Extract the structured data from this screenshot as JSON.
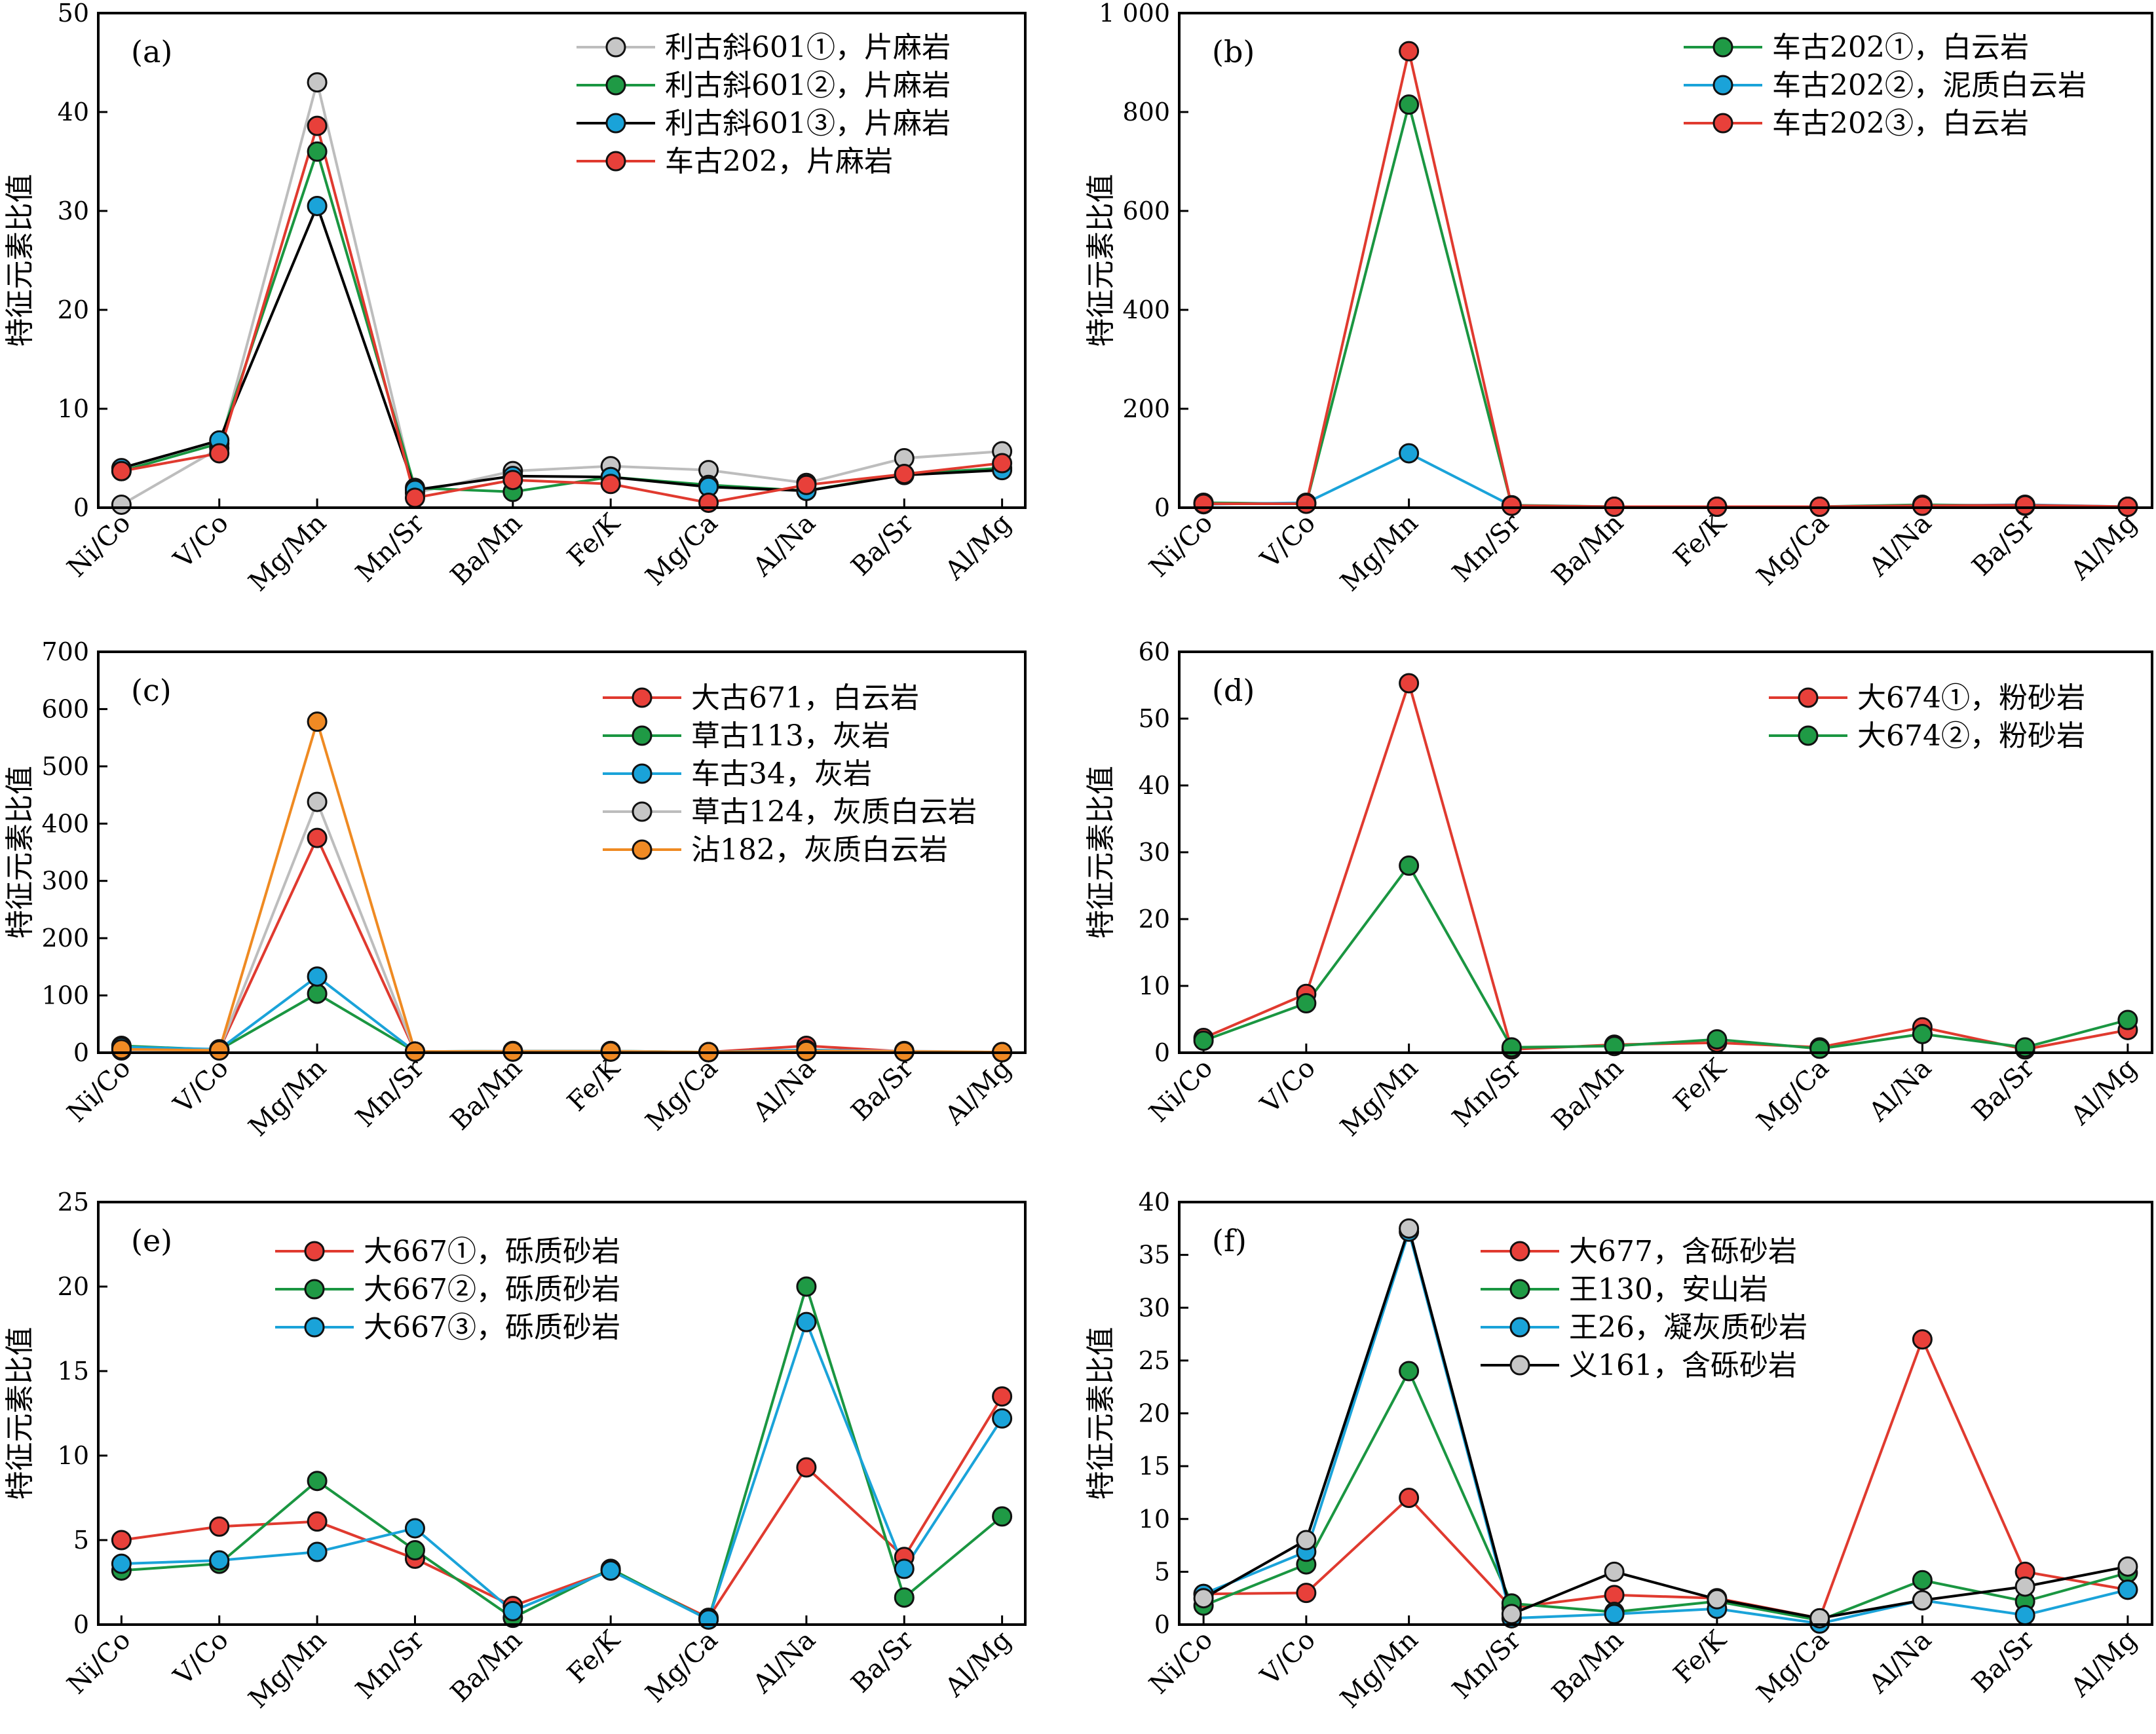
{
  "chart_data": [
    {
      "panel": "(a)",
      "type": "line",
      "ylabel": "特征元素比值",
      "ylim": [
        0,
        50
      ],
      "yticks": [
        "0",
        "10",
        "20",
        "30",
        "40",
        "50"
      ],
      "categories": [
        "Ni/Co",
        "V/Co",
        "Mg/Mn",
        "Mn/Sr",
        "Ba/Mn",
        "Fe/K",
        "Mg/Ca",
        "Al/Na",
        "Ba/Sr",
        "Al/Mg"
      ],
      "legend_position": "top-right",
      "series": [
        {
          "name": "利古斜601①，片麻岩",
          "line_color": "#bdbdbd",
          "marker_color": "#c6c6c6",
          "values": [
            0.3,
            6.0,
            43.0,
            1.5,
            3.7,
            4.2,
            3.8,
            2.5,
            5.0,
            5.7
          ]
        },
        {
          "name": "利古斜601②，片麻岩",
          "line_color": "#1a9641",
          "marker_color": "#1f9a45",
          "values": [
            3.7,
            6.5,
            36.0,
            2.0,
            1.6,
            3.1,
            2.3,
            1.7,
            3.4,
            4.0
          ]
        },
        {
          "name": "利古斜601③，片麻岩",
          "line_color": "#000000",
          "marker_color": "#1aa3d9",
          "values": [
            4.0,
            6.8,
            30.5,
            1.8,
            3.2,
            3.1,
            2.1,
            1.7,
            3.3,
            3.8
          ]
        },
        {
          "name": "车古202，片麻岩",
          "line_color": "#e03a2f",
          "marker_color": "#e8403a",
          "values": [
            3.7,
            5.5,
            38.6,
            1.0,
            2.8,
            2.4,
            0.5,
            2.3,
            3.4,
            4.5
          ]
        }
      ]
    },
    {
      "panel": "(b)",
      "type": "line",
      "ylabel": "特征元素比值",
      "ylim": [
        0,
        1000
      ],
      "yticks": [
        "0",
        "200",
        "400",
        "600",
        "800",
        "1 000"
      ],
      "categories": [
        "Ni/Co",
        "V/Co",
        "Mg/Mn",
        "Mn/Sr",
        "Ba/Mn",
        "Fe/K",
        "Mg/Ca",
        "Al/Na",
        "Ba/Sr",
        "Al/Mg"
      ],
      "legend_position": "top-right",
      "series": [
        {
          "name": "车古202①，白云岩",
          "line_color": "#1a9641",
          "marker_color": "#1f9a45",
          "values": [
            10,
            8,
            815,
            5,
            2,
            2,
            2,
            6,
            4,
            2
          ]
        },
        {
          "name": "车古202②，泥质白云岩",
          "line_color": "#1aa3d9",
          "marker_color": "#1aa3d9",
          "values": [
            7,
            10,
            110,
            4,
            2,
            2,
            2,
            4,
            6,
            2
          ]
        },
        {
          "name": "车古202③，白云岩",
          "line_color": "#e03a2f",
          "marker_color": "#e8403a",
          "values": [
            8,
            8,
            923,
            4,
            2,
            2,
            2,
            4,
            5,
            2
          ]
        }
      ]
    },
    {
      "panel": "(c)",
      "type": "line",
      "ylabel": "特征元素比值",
      "ylim": [
        0,
        700
      ],
      "yticks": [
        "0",
        "100",
        "200",
        "300",
        "400",
        "500",
        "600",
        "700"
      ],
      "categories": [
        "Ni/Co",
        "V/Co",
        "Mg/Mn",
        "Mn/Sr",
        "Ba/Mn",
        "Fe/K",
        "Mg/Ca",
        "Al/Na",
        "Ba/Sr",
        "Al/Mg"
      ],
      "legend_position": "top-right",
      "series": [
        {
          "name": "大古671，白云岩",
          "line_color": "#e03a2f",
          "marker_color": "#e8403a",
          "values": [
            8,
            5,
            375,
            2,
            2,
            2,
            1,
            12,
            2,
            1
          ]
        },
        {
          "name": "草古113，灰岩",
          "line_color": "#1a9641",
          "marker_color": "#1f9a45",
          "values": [
            12,
            5,
            103,
            2,
            3,
            3,
            1,
            4,
            2,
            1
          ]
        },
        {
          "name": "车古34，灰岩",
          "line_color": "#1aa3d9",
          "marker_color": "#1aa3d9",
          "values": [
            10,
            6,
            133,
            2,
            2,
            2,
            1,
            5,
            2,
            1
          ]
        },
        {
          "name": "草古124，灰质白云岩",
          "line_color": "#bdbdbd",
          "marker_color": "#c6c6c6",
          "values": [
            4,
            5,
            438,
            2,
            3,
            3,
            1,
            3,
            3,
            1
          ]
        },
        {
          "name": "沾182，灰质白云岩",
          "line_color": "#ef8a22",
          "marker_color": "#f08a24",
          "values": [
            6,
            4,
            578,
            2,
            2,
            2,
            1,
            3,
            2,
            1
          ]
        }
      ]
    },
    {
      "panel": "(d)",
      "type": "line",
      "ylabel": "特征元素比值",
      "ylim": [
        0,
        60
      ],
      "yticks": [
        "0",
        "10",
        "20",
        "30",
        "40",
        "50",
        "60"
      ],
      "categories": [
        "Ni/Co",
        "V/Co",
        "Mg/Mn",
        "Mn/Sr",
        "Ba/Mn",
        "Fe/K",
        "Mg/Ca",
        "Al/Na",
        "Ba/Sr",
        "Al/Mg"
      ],
      "legend_position": "top-right",
      "series": [
        {
          "name": "大674①，粉砂岩",
          "line_color": "#e03a2f",
          "marker_color": "#e8403a",
          "values": [
            2.2,
            8.8,
            55.3,
            0.5,
            1.2,
            1.5,
            0.8,
            3.8,
            0.5,
            3.4
          ]
        },
        {
          "name": "大674②，粉砂岩",
          "line_color": "#1a9641",
          "marker_color": "#1f9a45",
          "values": [
            1.8,
            7.4,
            28.0,
            0.8,
            1.0,
            2.0,
            0.6,
            2.8,
            0.8,
            4.9
          ]
        }
      ]
    },
    {
      "panel": "(e)",
      "type": "line",
      "ylabel": "特征元素比值",
      "ylim": [
        0,
        25
      ],
      "yticks": [
        "0",
        "5",
        "10",
        "15",
        "20",
        "25"
      ],
      "categories": [
        "Ni/Co",
        "V/Co",
        "Mg/Mn",
        "Mn/Sr",
        "Ba/Mn",
        "Fe/K",
        "Mg/Ca",
        "Al/Na",
        "Ba/Sr",
        "Al/Mg"
      ],
      "legend_position": "top-left",
      "series": [
        {
          "name": "大667①，砾质砂岩",
          "line_color": "#e03a2f",
          "marker_color": "#e8403a",
          "values": [
            5.0,
            5.8,
            6.1,
            3.9,
            1.1,
            3.2,
            0.4,
            9.3,
            4.0,
            13.5
          ]
        },
        {
          "name": "大667②，砾质砂岩",
          "line_color": "#1a9641",
          "marker_color": "#1f9a45",
          "values": [
            3.2,
            3.6,
            8.5,
            4.4,
            0.4,
            3.3,
            0.3,
            20.0,
            1.6,
            6.4
          ]
        },
        {
          "name": "大667③，砾质砂岩",
          "line_color": "#1aa3d9",
          "marker_color": "#1aa3d9",
          "values": [
            3.6,
            3.8,
            4.3,
            5.7,
            0.8,
            3.2,
            0.3,
            17.9,
            3.3,
            12.2
          ]
        }
      ]
    },
    {
      "panel": "(f)",
      "type": "line",
      "ylabel": "特征元素比值",
      "ylim": [
        0,
        40
      ],
      "yticks": [
        "0",
        "5",
        "10",
        "15",
        "20",
        "25",
        "30",
        "35",
        "40"
      ],
      "categories": [
        "Ni/Co",
        "V/Co",
        "Mg/Mn",
        "Mn/Sr",
        "Ba/Mn",
        "Fe/K",
        "Mg/Ca",
        "Al/Na",
        "Ba/Sr",
        "Al/Mg"
      ],
      "legend_position": "top-left",
      "series": [
        {
          "name": "大677，含砾砂岩",
          "line_color": "#e03a2f",
          "marker_color": "#e8403a",
          "values": [
            2.9,
            3.0,
            12.0,
            1.6,
            2.8,
            2.5,
            0.6,
            27.0,
            5.0,
            3.3
          ]
        },
        {
          "name": "王130，安山岩",
          "line_color": "#1a9641",
          "marker_color": "#1f9a45",
          "values": [
            1.8,
            5.7,
            24.0,
            2.0,
            1.2,
            2.2,
            0.4,
            4.2,
            2.2,
            4.9
          ]
        },
        {
          "name": "王26，凝灰质砂岩",
          "line_color": "#1aa3d9",
          "marker_color": "#1aa3d9",
          "values": [
            2.9,
            6.9,
            37.2,
            0.6,
            1.0,
            1.5,
            0.1,
            2.3,
            0.9,
            3.3
          ]
        },
        {
          "name": "义161，含砾砂岩",
          "line_color": "#000000",
          "marker_color": "#c6c6c6",
          "values": [
            2.5,
            8.0,
            37.5,
            1.0,
            5.0,
            2.4,
            0.6,
            2.3,
            3.6,
            5.5
          ]
        }
      ]
    }
  ]
}
